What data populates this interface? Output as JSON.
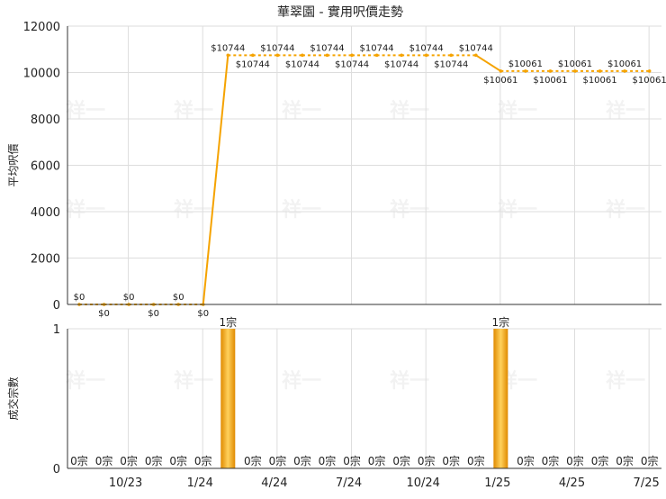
{
  "title": "華翠園 - 實用呎價走勢",
  "watermark": "祥一",
  "colors": {
    "line": "#F5A300",
    "bar_dark": "#E08A00",
    "bar_light": "#FFD15C",
    "grid": "#DDDDDD",
    "axis": "#333333",
    "label": "#222222"
  },
  "chart_data": [
    {
      "type": "line",
      "ylabel": "平均呎價",
      "ylim": [
        0,
        12000
      ],
      "yticks": [
        "0",
        "2000",
        "4000",
        "6000",
        "8000",
        "10000",
        "12000"
      ],
      "x_count": 24,
      "values": [
        0,
        0,
        0,
        0,
        0,
        0,
        10744,
        10744,
        10744,
        10744,
        10744,
        10744,
        10744,
        10744,
        10744,
        10744,
        10744,
        10061,
        10061,
        10061,
        10061,
        10061,
        10061,
        10061
      ],
      "data_labels": [
        "$0",
        "$0",
        "$0",
        "$0",
        "$0",
        "$0",
        "$10744",
        "$10744",
        "$10744",
        "$10744",
        "$10744",
        "$10744",
        "$10744",
        "$10744",
        "$10744",
        "$10744",
        "$10744",
        "$10061",
        "$10061",
        "$10061",
        "$10061",
        "$10061",
        "$10061",
        "$10061"
      ]
    },
    {
      "type": "bar",
      "ylabel": "成交宗數",
      "ylim": [
        0,
        1
      ],
      "yticks": [
        "0",
        "1"
      ],
      "values": [
        0,
        0,
        0,
        0,
        0,
        0,
        1,
        0,
        0,
        0,
        0,
        0,
        0,
        0,
        0,
        0,
        0,
        1,
        0,
        0,
        0,
        0,
        0,
        0
      ],
      "data_labels": [
        "0宗",
        "0宗",
        "0宗",
        "0宗",
        "0宗",
        "0宗",
        "1宗",
        "0宗",
        "0宗",
        "0宗",
        "0宗",
        "0宗",
        "0宗",
        "0宗",
        "0宗",
        "0宗",
        "0宗",
        "1宗",
        "0宗",
        "0宗",
        "0宗",
        "0宗",
        "0宗",
        "0宗"
      ],
      "x_tick_labels": [
        "10/23",
        "1/24",
        "4/24",
        "7/24",
        "10/24",
        "1/25",
        "4/25",
        "7/25"
      ]
    }
  ]
}
